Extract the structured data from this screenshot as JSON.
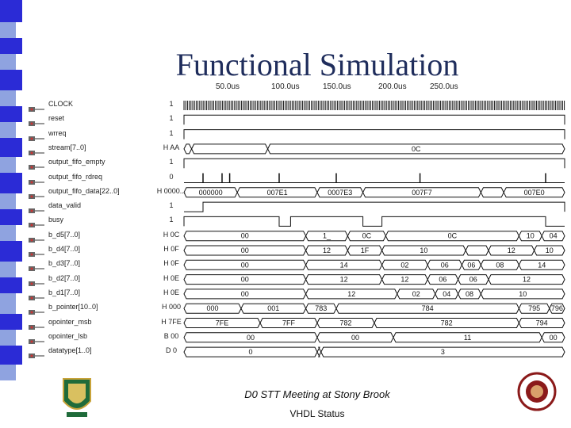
{
  "title": "Functional Simulation",
  "time_labels": [
    "50.0us",
    "100.0us",
    "150.0us",
    "200.0us",
    "250.0us"
  ],
  "signals": [
    {
      "name": "CLOCK",
      "value": "1",
      "kind": "clock"
    },
    {
      "name": "reset",
      "value": "1",
      "kind": "bit",
      "segs": [
        [
          0,
          1
        ]
      ]
    },
    {
      "name": "wrreq",
      "value": "1",
      "kind": "bit",
      "segs": [
        [
          0,
          1
        ]
      ]
    },
    {
      "name": "stream[7..0]",
      "value": "H AA",
      "kind": "bus",
      "segs": [
        [
          "",
          0,
          0.02
        ],
        [
          "",
          0.02,
          0.22
        ],
        [
          "0C",
          0.22,
          1
        ]
      ]
    },
    {
      "name": "output_fifo_empty",
      "value": "1",
      "kind": "bit",
      "segs": [
        [
          0,
          1
        ]
      ]
    },
    {
      "name": "output_fifo_rdreq",
      "value": "0",
      "kind": "pulse"
    },
    {
      "name": "output_fifo_data[22..0]",
      "value": "H 0000...",
      "kind": "bus",
      "segs": [
        [
          "000000",
          0,
          0.14
        ],
        [
          "007E1",
          0.14,
          0.35
        ],
        [
          "0007E3",
          0.35,
          0.47
        ],
        [
          "007F7",
          0.47,
          0.78
        ],
        [
          "",
          0.78,
          0.84
        ],
        [
          "007E0",
          0.84,
          1
        ]
      ]
    },
    {
      "name": "data_valid",
      "value": "1",
      "kind": "bit",
      "segs": [
        [
          0.05,
          1
        ]
      ]
    },
    {
      "name": "busy",
      "value": "1",
      "kind": "bit",
      "segs": [
        [
          0,
          0.25
        ],
        [
          0.28,
          0.47
        ],
        [
          0.52,
          0.95
        ]
      ]
    },
    {
      "name": "b_d5[7..0]",
      "value": "H 0C",
      "kind": "bus",
      "segs": [
        [
          "00",
          0,
          0.32
        ],
        [
          "1_",
          0.32,
          0.43
        ],
        [
          "0C",
          0.43,
          0.53
        ],
        [
          "0C",
          0.53,
          0.88
        ],
        [
          "10",
          0.88,
          0.94
        ],
        [
          "04",
          0.94,
          1
        ]
      ]
    },
    {
      "name": "b_d4[7..0]",
      "value": "H 0F",
      "kind": "bus",
      "segs": [
        [
          "00",
          0,
          0.32
        ],
        [
          "12",
          0.32,
          0.43
        ],
        [
          "1F",
          0.43,
          0.52
        ],
        [
          "10",
          0.52,
          0.74
        ],
        [
          "",
          0.74,
          0.8
        ],
        [
          "12",
          0.8,
          0.92
        ],
        [
          "10",
          0.92,
          1
        ]
      ]
    },
    {
      "name": "b_d3[7..0]",
      "value": "H 0F",
      "kind": "bus",
      "segs": [
        [
          "00",
          0,
          0.32
        ],
        [
          "14",
          0.32,
          0.52
        ],
        [
          "02",
          0.52,
          0.64
        ],
        [
          "06",
          0.64,
          0.73
        ],
        [
          "06",
          0.73,
          0.78
        ],
        [
          "08",
          0.78,
          0.88
        ],
        [
          "14",
          0.88,
          1
        ]
      ]
    },
    {
      "name": "b_d2[7..0]",
      "value": "H 0E",
      "kind": "bus",
      "segs": [
        [
          "00",
          0,
          0.32
        ],
        [
          "12",
          0.32,
          0.52
        ],
        [
          "12",
          0.52,
          0.64
        ],
        [
          "06",
          0.64,
          0.72
        ],
        [
          "06",
          0.72,
          0.8
        ],
        [
          "12",
          0.8,
          1
        ]
      ]
    },
    {
      "name": "b_d1[7..0]",
      "value": "H 0E",
      "kind": "bus",
      "segs": [
        [
          "00",
          0,
          0.32
        ],
        [
          "12",
          0.32,
          0.56
        ],
        [
          "02",
          0.56,
          0.66
        ],
        [
          "04",
          0.66,
          0.72
        ],
        [
          "08",
          0.72,
          0.78
        ],
        [
          "10",
          0.78,
          1
        ]
      ]
    },
    {
      "name": "b_pointer[10..0]",
      "value": "H 000",
      "kind": "bus",
      "segs": [
        [
          "000",
          0,
          0.15
        ],
        [
          "001",
          0.15,
          0.32
        ],
        [
          "783",
          0.32,
          0.4
        ],
        [
          "784",
          0.4,
          0.88
        ],
        [
          "795",
          0.88,
          0.96
        ],
        [
          "796",
          0.96,
          1
        ]
      ]
    },
    {
      "name": "opointer_msb",
      "value": "H 7FE",
      "kind": "bus",
      "segs": [
        [
          "7FE",
          0,
          0.2
        ],
        [
          "7FF",
          0.2,
          0.35
        ],
        [
          "782",
          0.35,
          0.5
        ],
        [
          "782",
          0.5,
          0.88
        ],
        [
          "794",
          0.88,
          1
        ]
      ]
    },
    {
      "name": "opointer_lsb",
      "value": "B 00",
      "kind": "bus",
      "segs": [
        [
          "00",
          0,
          0.35
        ],
        [
          "00",
          0.35,
          0.55
        ],
        [
          "11",
          0.55,
          0.94
        ],
        [
          "00",
          0.94,
          1
        ]
      ]
    },
    {
      "name": "datatype[1..0]",
      "value": "D 0",
      "kind": "bus",
      "segs": [
        [
          "0",
          0,
          0.35
        ],
        [
          "",
          0.35,
          0.36
        ],
        [
          "3",
          0.36,
          1
        ]
      ]
    }
  ],
  "footer": {
    "meeting": "D0 STT Meeting at Stony Brook",
    "subtitle": "VHDL Status"
  },
  "colors": {
    "title": "#1f2d5c",
    "stripe_blue": "#2b2bd6",
    "stripe_light": "#8fa3e0",
    "wave": "#111111"
  }
}
